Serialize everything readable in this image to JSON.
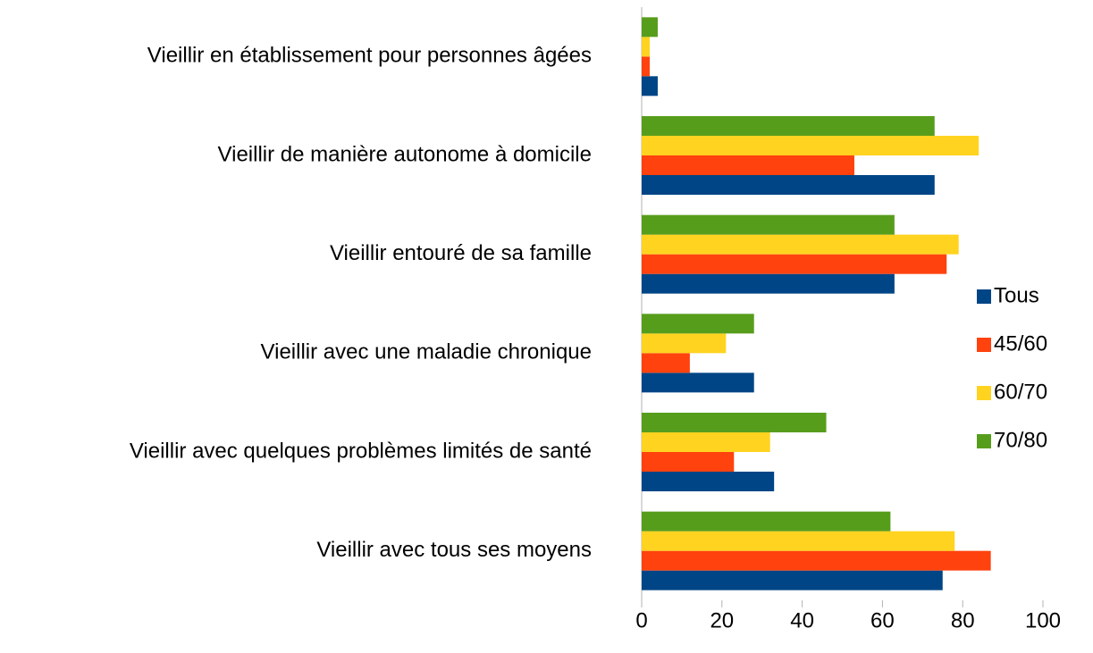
{
  "chart_data": {
    "type": "bar",
    "orientation": "horizontal",
    "categories": [
      "Vieillir en établissement pour personnes âgées",
      "Vieillir de manière autonome à domicile",
      "Vieillir entouré de sa famille",
      "Vieillir avec une maladie chronique",
      "Vieillir avec quelques problèmes limités de santé",
      "Vieillir avec tous ses moyens"
    ],
    "series": [
      {
        "name": "Tous",
        "color": "#004586",
        "values": [
          4,
          73,
          63,
          28,
          33,
          75
        ]
      },
      {
        "name": "45/60",
        "color": "#ff420e",
        "values": [
          2,
          53,
          76,
          12,
          23,
          87
        ]
      },
      {
        "name": "60/70",
        "color": "#ffd320",
        "values": [
          2,
          84,
          79,
          21,
          32,
          78
        ]
      },
      {
        "name": "70/80",
        "color": "#579d1c",
        "values": [
          4,
          73,
          63,
          28,
          46,
          62
        ]
      }
    ],
    "xlim": [
      0,
      100
    ],
    "xticks": [
      0,
      20,
      40,
      60,
      80,
      100
    ],
    "legend": "right"
  }
}
